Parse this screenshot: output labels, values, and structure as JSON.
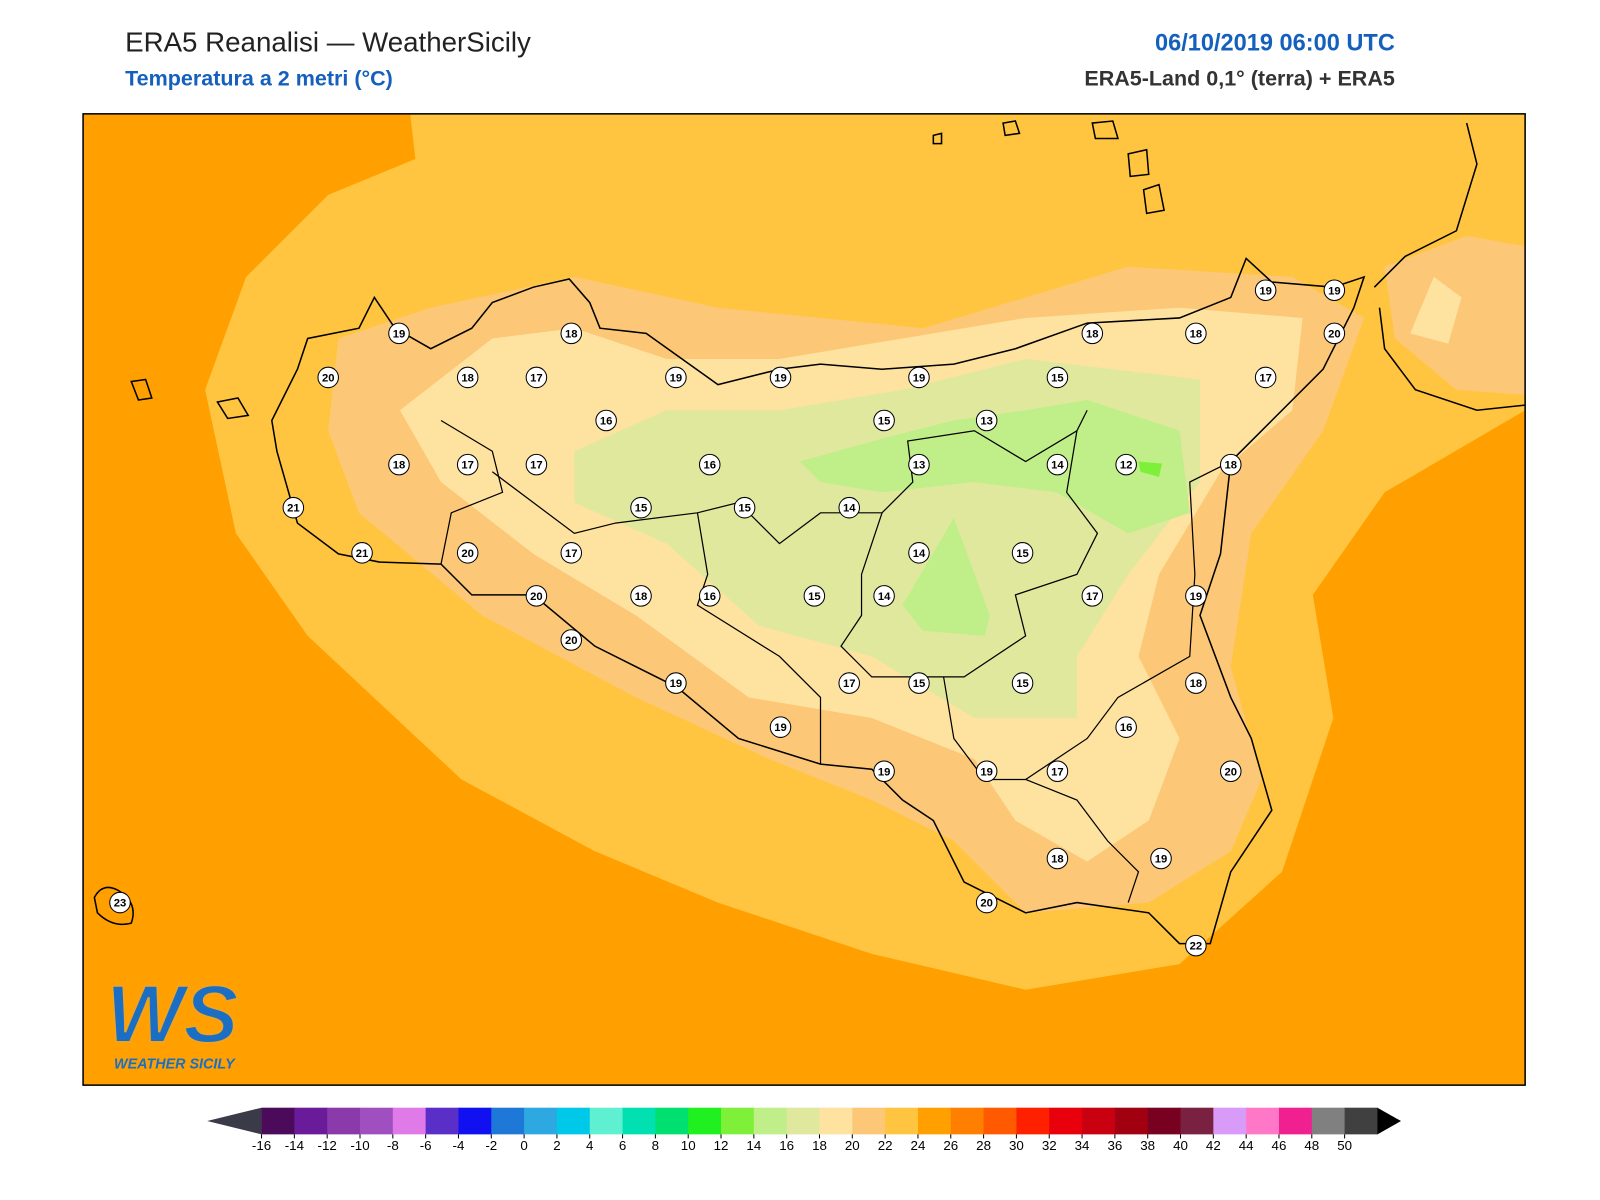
{
  "header": {
    "title": "ERA5 Reanalisi — WeatherSicily",
    "subtitle": "Temperatura a 2 metri (°C)",
    "datetime": "06/10/2019 06:00 UTC",
    "source": "ERA5-Land 0,1° (terra) + ERA5"
  },
  "map": {
    "stations": [
      19,
      20,
      18,
      17,
      18,
      19,
      19,
      16,
      18,
      17,
      17,
      21,
      21,
      20,
      17,
      20,
      15,
      16,
      18,
      16,
      20,
      19,
      19,
      15,
      14,
      15,
      14,
      17,
      15,
      19,
      19,
      14,
      13,
      15,
      19,
      13,
      15,
      14,
      15,
      15,
      17,
      17,
      16,
      18,
      19,
      20,
      22,
      20,
      18,
      19,
      18,
      12,
      17,
      18,
      18,
      19,
      19,
      20,
      23
    ]
  },
  "logo": {
    "mark": "WS",
    "name": "WEATHER SICILY"
  },
  "colorbar": {
    "ticks": [
      -16,
      -14,
      -12,
      -10,
      -8,
      -6,
      -4,
      -2,
      0,
      2,
      4,
      6,
      8,
      10,
      12,
      14,
      16,
      18,
      20,
      22,
      24,
      26,
      28,
      30,
      32,
      34,
      36,
      38,
      40,
      42,
      44,
      46,
      48,
      50
    ],
    "colors": [
      "#4b0a5a",
      "#6a1b9a",
      "#8a3aaa",
      "#a04fc0",
      "#e07ae8",
      "#5a2fc8",
      "#1010f0",
      "#1e78d8",
      "#2ea8e0",
      "#00c8e8",
      "#5ef0d0",
      "#00e0b0",
      "#00e070",
      "#20f020",
      "#7ef03a",
      "#c0ee88",
      "#dfe89c",
      "#fee3a0",
      "#fcc878",
      "#ffc540",
      "#ffa000",
      "#ff8000",
      "#ff5a00",
      "#ff2000",
      "#e8000c",
      "#c80010",
      "#a00010",
      "#780020",
      "#7a2040",
      "#d89cf8",
      "#ff78c8",
      "#f02090",
      "#808080",
      "#404040"
    ],
    "under_color": "#3a3a48",
    "over_color": "#000000"
  }
}
